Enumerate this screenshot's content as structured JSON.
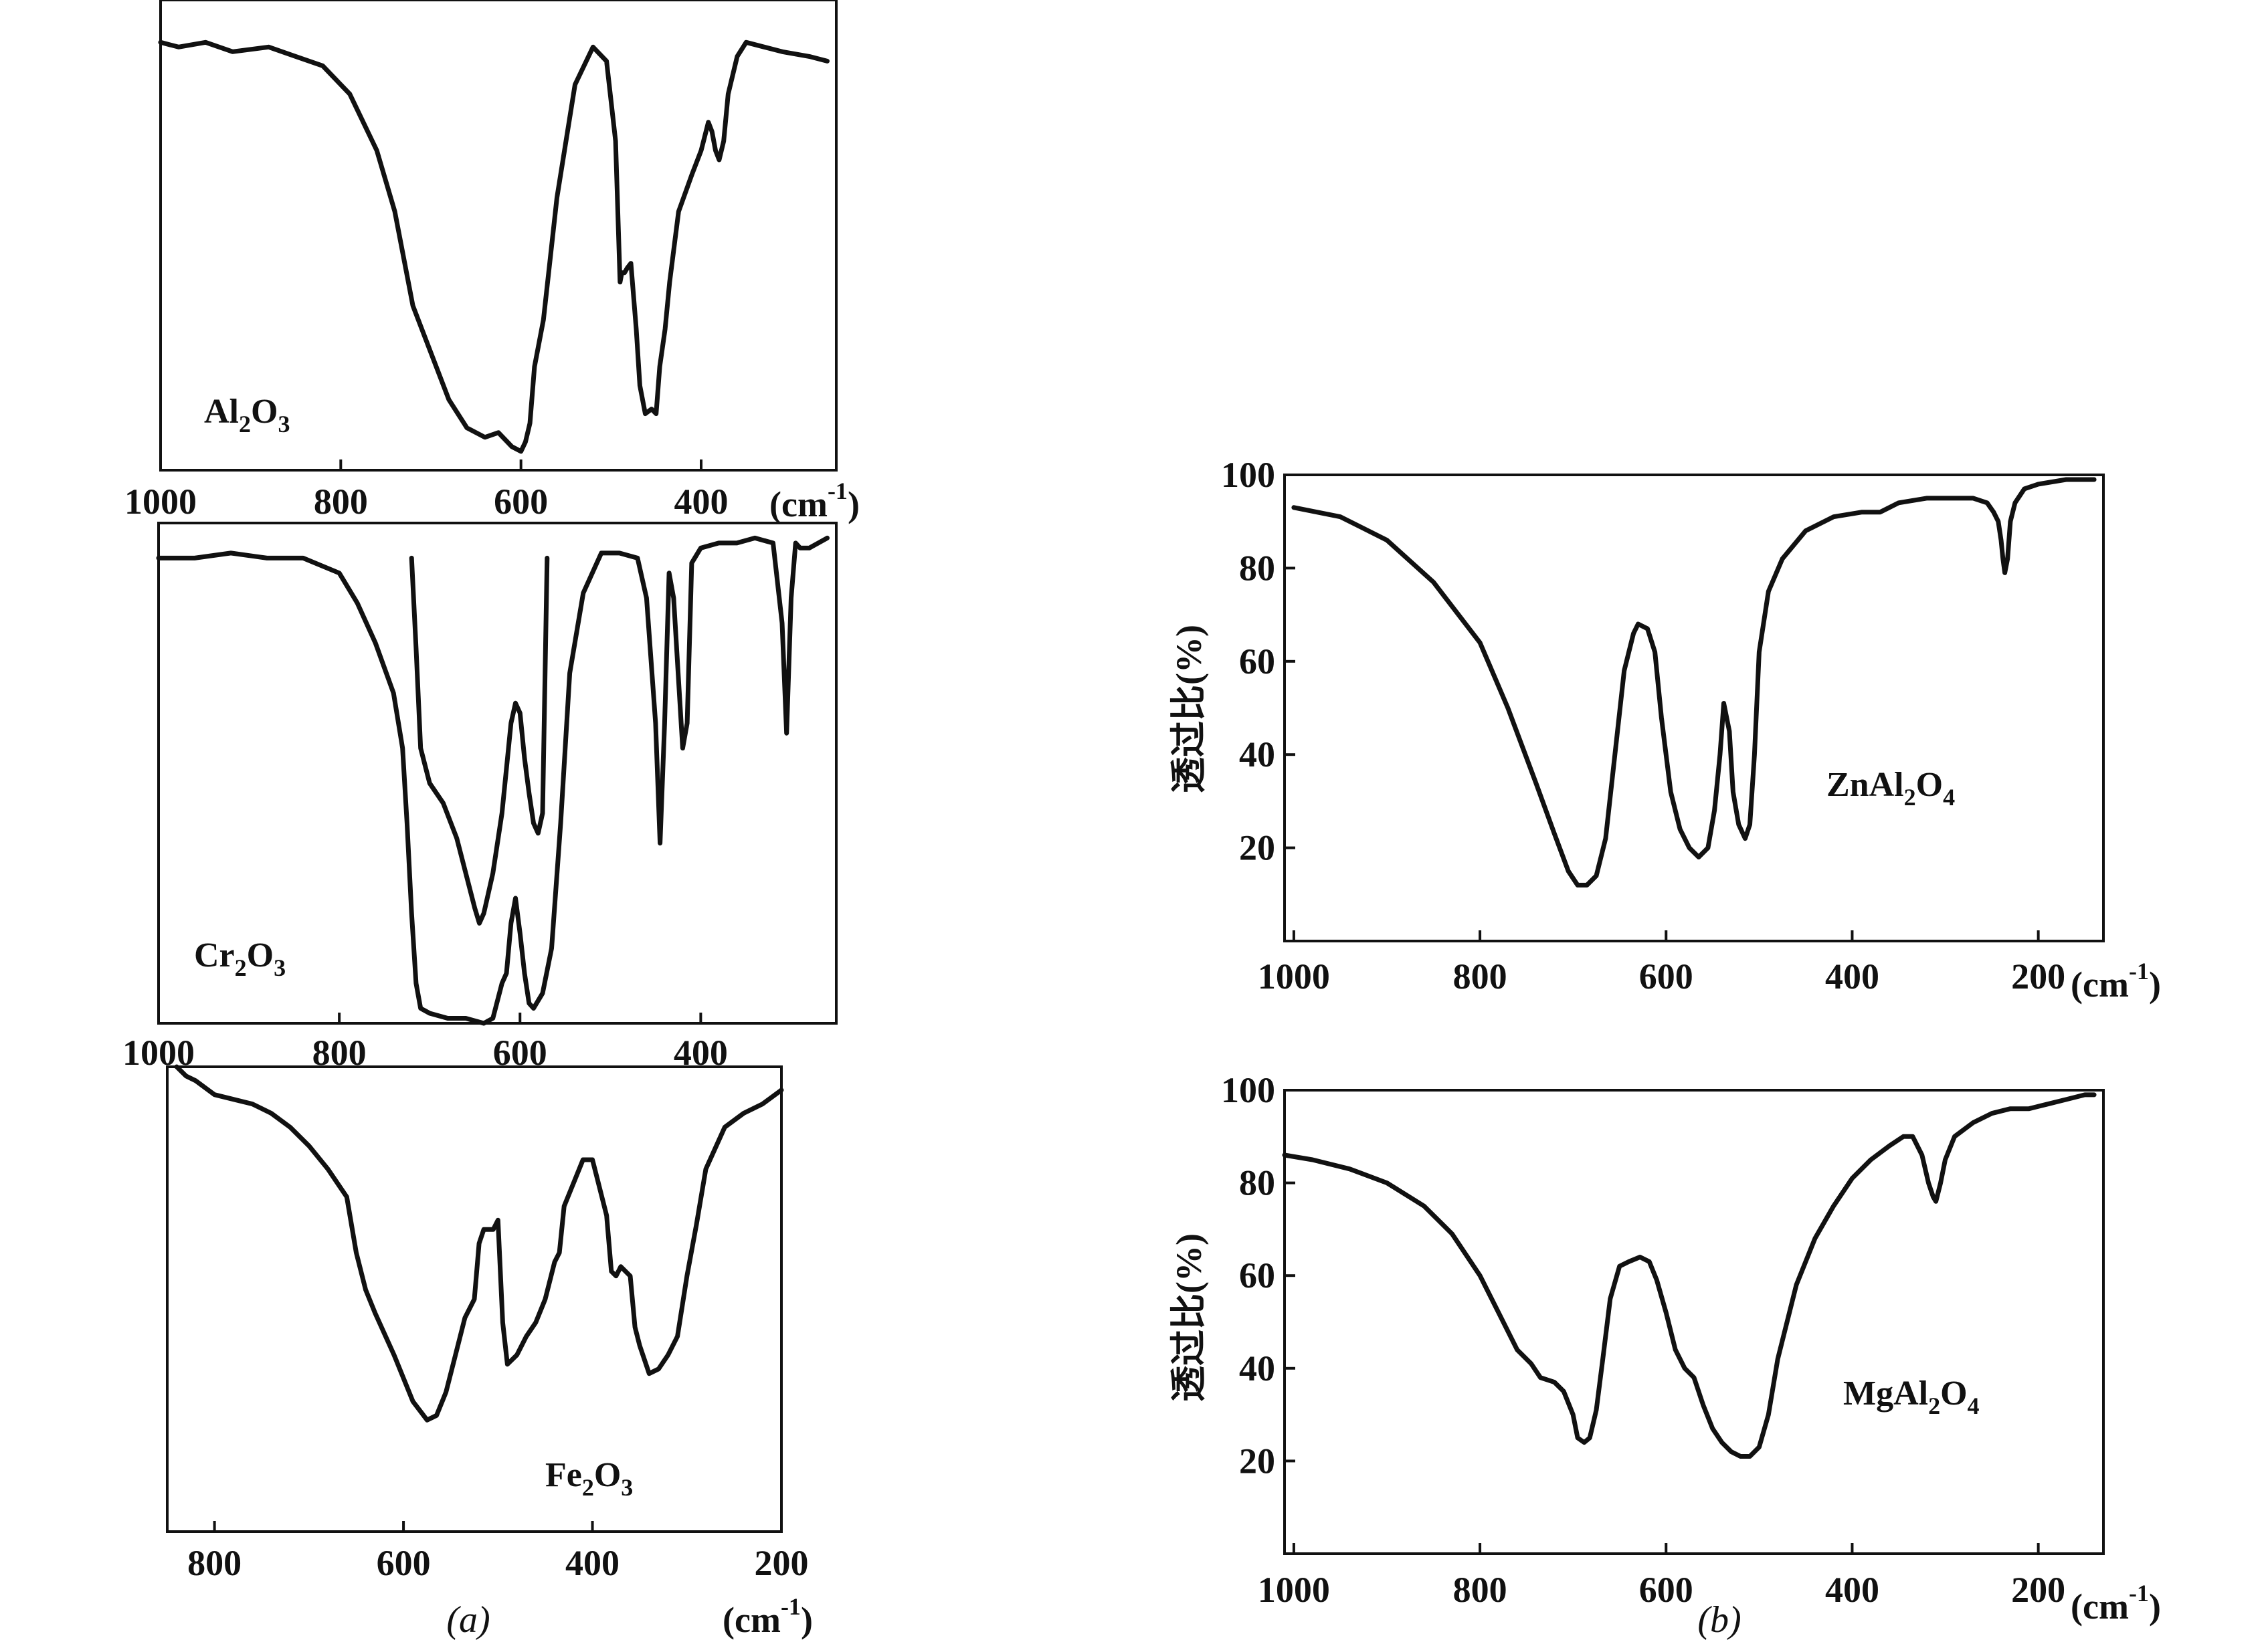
{
  "panels": {
    "a": {
      "label": "(a)"
    },
    "b": {
      "label": "(b)"
    }
  },
  "chart_data": [
    {
      "type": "line",
      "panel": "a",
      "compound": "Al₂O₃",
      "compound_base": "Al",
      "compound_sub1": "2",
      "compound_mid": "O",
      "compound_sub2": "3",
      "xlim": [
        1000,
        250
      ],
      "ylim": [
        0,
        100
      ],
      "x_ticks": [
        1000,
        800,
        600,
        400
      ],
      "xunit_base": "(cm",
      "xunit_sup": "-1",
      "xunit_close": ")",
      "grid": false,
      "series": [
        {
          "x": [
            1000,
            980,
            950,
            920,
            880,
            850,
            820,
            790,
            760,
            740,
            720,
            700,
            680,
            660,
            640,
            625,
            610,
            600,
            595,
            590,
            585,
            580,
            575,
            560,
            540,
            520,
            505,
            495,
            490,
            488,
            485,
            482,
            478,
            472,
            468,
            462,
            455,
            450,
            446,
            440,
            435,
            425,
            410,
            400,
            392,
            388,
            384,
            380,
            375,
            370,
            360,
            350,
            330,
            310,
            280,
            260
          ],
          "y": [
            91,
            90,
            91,
            89,
            90,
            88,
            86,
            80,
            68,
            55,
            35,
            25,
            15,
            9,
            7,
            8,
            5,
            4,
            6,
            10,
            22,
            27,
            32,
            58,
            82,
            90,
            87,
            70,
            40,
            42,
            42,
            43,
            44,
            30,
            18,
            12,
            13,
            12,
            22,
            30,
            40,
            55,
            63,
            68,
            74,
            72,
            68,
            66,
            70,
            80,
            88,
            91,
            90,
            89,
            88,
            87
          ]
        }
      ]
    },
    {
      "type": "line",
      "panel": "a",
      "compound": "Cr₂O₃",
      "compound_base": "Cr",
      "compound_sub1": "2",
      "compound_mid": "O",
      "compound_sub2": "3",
      "xlim": [
        1000,
        250
      ],
      "ylim": [
        0,
        100
      ],
      "x_ticks": [
        1000,
        800,
        600,
        400
      ],
      "grid": false,
      "series": [
        {
          "x": [
            1000,
            960,
            920,
            880,
            840,
            800,
            780,
            760,
            740,
            730,
            725,
            720,
            715,
            710,
            700,
            680,
            660,
            640,
            630,
            620,
            615,
            610,
            605,
            600,
            595,
            590,
            585,
            575,
            565,
            555,
            545,
            530,
            510,
            490,
            470,
            460,
            450,
            445,
            440,
            435,
            430,
            425,
            420,
            415,
            410,
            400,
            380,
            360,
            340,
            320,
            310,
            305,
            300,
            295,
            290,
            280,
            260
          ],
          "y": [
            93,
            93,
            94,
            93,
            93,
            90,
            84,
            76,
            66,
            55,
            40,
            22,
            8,
            3,
            2,
            1,
            1,
            0,
            1,
            8,
            10,
            20,
            25,
            18,
            10,
            4,
            3,
            6,
            15,
            40,
            70,
            86,
            94,
            94,
            93,
            85,
            60,
            36,
            60,
            90,
            85,
            70,
            55,
            60,
            92,
            95,
            96,
            96,
            97,
            96,
            80,
            58,
            85,
            96,
            95,
            95,
            97
          ]
        },
        {
          "x": [
            720,
            715,
            710,
            700,
            685,
            670,
            660,
            650,
            645,
            640,
            630,
            620,
            610,
            605,
            600,
            595,
            590,
            585,
            580,
            575,
            570
          ],
          "y": [
            93,
            75,
            55,
            48,
            44,
            37,
            30,
            23,
            20,
            22,
            30,
            42,
            60,
            64,
            62,
            53,
            46,
            40,
            38,
            42,
            93
          ]
        }
      ]
    },
    {
      "type": "line",
      "panel": "a",
      "compound": "Fe₂O₃",
      "compound_base": "Fe",
      "compound_sub1": "2",
      "compound_mid": "O",
      "compound_sub2": "3",
      "xlim": [
        850,
        200
      ],
      "ylim": [
        0,
        100
      ],
      "x_ticks": [
        800,
        600,
        400,
        200
      ],
      "xunit_base": "(cm",
      "xunit_sup": "-1",
      "xunit_close": ")",
      "grid": false,
      "series": [
        {
          "x": [
            840,
            830,
            820,
            800,
            780,
            760,
            740,
            720,
            700,
            680,
            660,
            650,
            640,
            630,
            610,
            590,
            575,
            565,
            555,
            545,
            535,
            525,
            520,
            515,
            505,
            500,
            495,
            490,
            480,
            470,
            460,
            450,
            440,
            435,
            430,
            420,
            410,
            400,
            395,
            385,
            380,
            375,
            370,
            360,
            355,
            350,
            340,
            330,
            320,
            310,
            300,
            290,
            280,
            260,
            240,
            220,
            200
          ],
          "y": [
            100,
            98,
            97,
            94,
            93,
            92,
            90,
            87,
            83,
            78,
            72,
            60,
            52,
            47,
            38,
            28,
            24,
            25,
            30,
            38,
            46,
            50,
            62,
            65,
            65,
            67,
            45,
            36,
            38,
            42,
            45,
            50,
            58,
            60,
            70,
            75,
            80,
            80,
            76,
            68,
            56,
            55,
            57,
            55,
            44,
            40,
            34,
            35,
            38,
            42,
            55,
            66,
            78,
            87,
            90,
            92,
            95
          ]
        }
      ]
    },
    {
      "type": "line",
      "panel": "b",
      "compound": "ZnAl₂O₄",
      "compound_base": "ZnAl",
      "compound_sub1": "2",
      "compound_mid": "O",
      "compound_sub2": "4",
      "xlim": [
        1010,
        130
      ],
      "ylim": [
        0,
        100
      ],
      "yticks": [
        20,
        40,
        60,
        80,
        100
      ],
      "x_ticks": [
        1000,
        800,
        600,
        400,
        200
      ],
      "ylabel": "透过比(%)",
      "xunit_base": "(cm",
      "xunit_sup": "-1",
      "xunit_close": ")",
      "grid": false,
      "series": [
        {
          "x": [
            1000,
            950,
            900,
            850,
            800,
            770,
            740,
            720,
            705,
            695,
            685,
            675,
            665,
            655,
            645,
            635,
            630,
            620,
            612,
            605,
            595,
            585,
            575,
            565,
            555,
            548,
            542,
            538,
            532,
            528,
            522,
            515,
            510,
            505,
            500,
            490,
            475,
            450,
            420,
            390,
            370,
            350,
            320,
            290,
            270,
            255,
            248,
            243,
            240,
            238,
            236,
            233,
            230,
            225,
            215,
            200,
            170,
            140
          ],
          "y": [
            93,
            91,
            86,
            77,
            64,
            50,
            34,
            23,
            15,
            12,
            12,
            14,
            22,
            40,
            58,
            66,
            68,
            67,
            62,
            48,
            32,
            24,
            20,
            18,
            20,
            28,
            40,
            51,
            45,
            32,
            25,
            22,
            25,
            40,
            62,
            75,
            82,
            88,
            91,
            92,
            92,
            94,
            95,
            95,
            95,
            94,
            92,
            90,
            86,
            82,
            79,
            82,
            90,
            94,
            97,
            98,
            99,
            99
          ]
        }
      ]
    },
    {
      "type": "line",
      "panel": "b",
      "compound": "MgAl₂O₄",
      "compound_base": "MgAl",
      "compound_sub1": "2",
      "compound_mid": "O",
      "compound_sub2": "4",
      "xlim": [
        1010,
        130
      ],
      "ylim": [
        0,
        100
      ],
      "yticks": [
        20,
        40,
        60,
        80,
        100
      ],
      "x_ticks": [
        1000,
        800,
        600,
        400,
        200
      ],
      "ylabel": "透过比(%)",
      "xunit_base": "(cm",
      "xunit_sup": "-1",
      "xunit_close": ")",
      "grid": false,
      "series": [
        {
          "x": [
            1010,
            980,
            940,
            900,
            860,
            830,
            800,
            780,
            760,
            745,
            735,
            720,
            710,
            700,
            695,
            688,
            682,
            675,
            668,
            660,
            650,
            640,
            628,
            618,
            610,
            600,
            590,
            580,
            570,
            560,
            550,
            540,
            530,
            520,
            510,
            500,
            490,
            480,
            460,
            440,
            420,
            400,
            380,
            360,
            345,
            335,
            325,
            318,
            313,
            310,
            305,
            300,
            290,
            270,
            250,
            230,
            210,
            190,
            170,
            150,
            140
          ],
          "y": [
            86,
            85,
            83,
            80,
            75,
            69,
            60,
            52,
            44,
            41,
            38,
            37,
            35,
            30,
            25,
            24,
            25,
            31,
            42,
            55,
            62,
            63,
            64,
            63,
            59,
            52,
            44,
            40,
            38,
            32,
            27,
            24,
            22,
            21,
            21,
            23,
            30,
            42,
            58,
            68,
            75,
            81,
            85,
            88,
            90,
            90,
            86,
            80,
            77,
            76,
            80,
            85,
            90,
            93,
            95,
            96,
            96,
            97,
            98,
            99,
            99
          ]
        }
      ]
    }
  ]
}
